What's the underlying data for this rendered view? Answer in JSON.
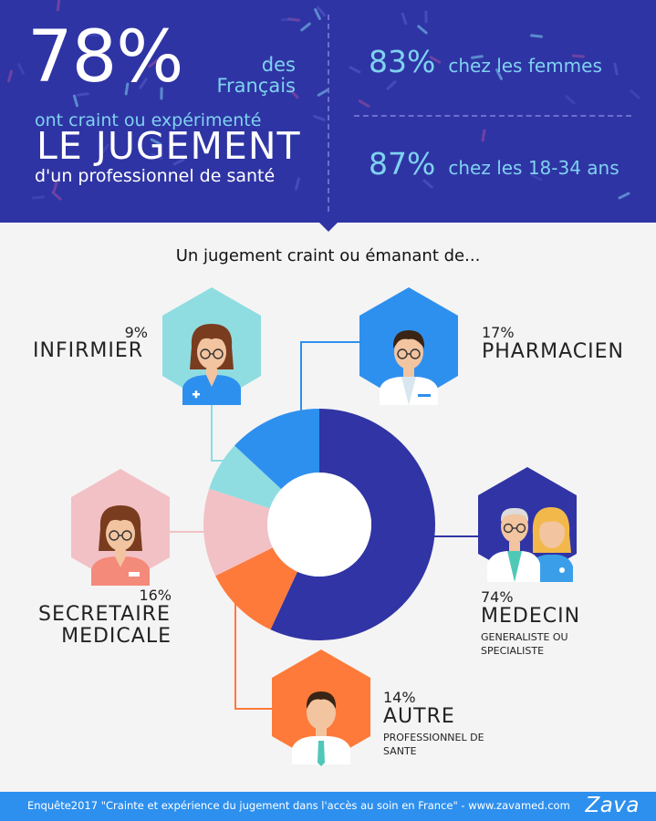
{
  "header": {
    "big_pct": "78%",
    "des": "des",
    "francais": "Français",
    "line1": "ont craint ou expérimenté",
    "line2": "LE JUGEMENT",
    "line3": "d'un professionnel de santé",
    "stats": [
      {
        "pct": "83%",
        "text": "chez les femmes"
      },
      {
        "pct": "87%",
        "text": "chez les 18-34 ans"
      }
    ],
    "bg_color": "#2f34a4",
    "accent_color": "#7fd2f0"
  },
  "subtitle": "Un jugement craint ou émanant de...",
  "labels": {
    "infirmier": {
      "pct": "9%",
      "name": "INFIRMIER"
    },
    "pharmacien": {
      "pct": "17%",
      "name": "PHARMACIEN"
    },
    "secretaire": {
      "pct": "16%",
      "name1": "SECRETAIRE",
      "name2": "MEDICALE"
    },
    "medecin": {
      "pct": "74%",
      "name": "MEDECIN",
      "sub1": "GENERALISTE OU",
      "sub2": "SPECIALISTE"
    },
    "autre": {
      "pct": "14%",
      "name": "AUTRE",
      "sub1": "PROFESSIONNEL DE",
      "sub2": "SANTE"
    }
  },
  "icons": {
    "infirmier": "nurse-icon",
    "pharmacien": "pharmacist-icon",
    "secretaire": "secretary-icon",
    "medecin": "doctors-icon",
    "autre": "professional-icon"
  },
  "chart_data": {
    "type": "pie",
    "style": "donut",
    "title": "Un jugement craint ou émanant de...",
    "categories": [
      "MEDECIN",
      "AUTRE",
      "SECRETAIRE MEDICALE",
      "INFIRMIER",
      "PHARMACIEN"
    ],
    "values": [
      74,
      14,
      16,
      9,
      17
    ],
    "value_suffix": "%",
    "colors": [
      "#3134a4",
      "#fe7a3a",
      "#f2c1c5",
      "#8fdde1",
      "#2e90ee"
    ]
  },
  "footer": {
    "source": "Enquête2017 \"Crainte et expérience du jugement dans l'accès au soin en France\" - www.zavamed.com",
    "brand": "Zava",
    "bg_color": "#2e90ee"
  }
}
